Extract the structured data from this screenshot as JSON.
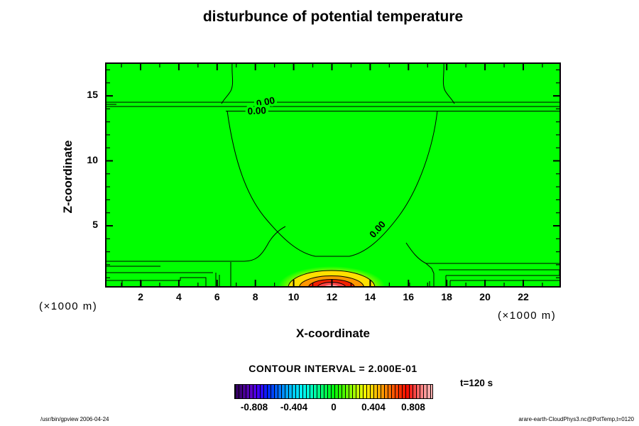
{
  "title": "disturbunce of potential temperature",
  "axes": {
    "x": {
      "label": "X-coordinate",
      "unit_left": "(×1000 m)",
      "unit_right": "(×1000 m)",
      "ticks": [
        2,
        4,
        6,
        8,
        10,
        12,
        14,
        16,
        18,
        20,
        22
      ]
    },
    "y": {
      "label": "Z-coordinate",
      "ticks": [
        5,
        10,
        15
      ]
    }
  },
  "plot": {
    "bg_color": "#00ff00",
    "contour_line_color": "#000000",
    "contour_labels": [
      "0.00",
      "0.00",
      "0.00"
    ],
    "warm_bubble_colors": [
      "#ffe000",
      "#ff9600",
      "#f22000",
      "#ff4444",
      "#ff9898"
    ]
  },
  "legend": {
    "contour_interval_text": "CONTOUR INTERVAL = 2.000E-01",
    "tick_labels": [
      "-0.808",
      "-0.404",
      "0",
      "0.404",
      "0.808"
    ],
    "colorbar_colors": [
      "#2e0054",
      "#46008c",
      "#5a00c8",
      "#3c00ff",
      "#0026ff",
      "#005cff",
      "#0096ff",
      "#00c8ff",
      "#00f0ff",
      "#00ffd2",
      "#00ff96",
      "#00ff50",
      "#00ff0a",
      "#3cff00",
      "#82ff00",
      "#c8ff00",
      "#fff000",
      "#ffc800",
      "#ff9600",
      "#ff6400",
      "#ff3200",
      "#ff0a00",
      "#ff5050",
      "#ff9696",
      "#ffb4b4"
    ],
    "time_label": "t=120 s"
  },
  "footer": {
    "left": "/usr/bin/gpview 2006-04-24",
    "right": "arare-earth-CloudPhys3.nc@PotTemp,t=0120"
  },
  "chart_data": {
    "type": "heatmap",
    "subtype": "filled-contour",
    "title": "disturbunce of potential temperature",
    "xlabel": "X-coordinate",
    "ylabel": "Z-coordinate",
    "x_unit": "×1000 m",
    "y_unit": "×1000 m",
    "xlim": [
      0.1,
      23.9
    ],
    "ylim": [
      0.25,
      17.6
    ],
    "x_ticks": [
      2,
      4,
      6,
      8,
      10,
      12,
      14,
      16,
      18,
      20,
      22
    ],
    "y_ticks": [
      5,
      10,
      15
    ],
    "contour_interval": 0.2,
    "background_value": 0.0,
    "colorbar": {
      "min": -1.01,
      "max": 1.01,
      "tick_values": [
        -0.808,
        -0.404,
        0,
        0.404,
        0.808
      ]
    },
    "features": {
      "zero_contour_lines": "horizontal 0.00 contours spanning full width near z=14.2-14.6 (×1000 m)",
      "zero_contour_bowl": "bowl-shaped 0.00 contour from z≈14 down to z≈2 between x≈6.5 and x≈17.5, labeled 0.00 on its right slope",
      "boundary_layer_contours": "stacked near-surface contour lines below z≈1.7 at both left and right edges",
      "warm_bubble": {
        "center_x": 12.0,
        "center_z": 0.0,
        "radius_x": 2.3,
        "radius_z": 1.3,
        "peak_value": 0.9,
        "ring_levels": [
          0.2,
          0.4,
          0.6,
          0.8
        ]
      },
      "time": "t=120 s"
    }
  }
}
